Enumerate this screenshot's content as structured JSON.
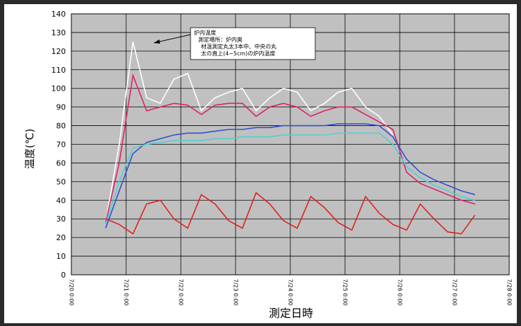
{
  "chart_data": {
    "type": "line",
    "y_label": "温度(℃)",
    "x_label": "測定日時",
    "annotation": [
      "炉内温度",
      "測定場所：炉内奥",
      "材温測定丸太3本中、中央の丸",
      "太の直上(4~5cm)の炉内温度"
    ],
    "x": [
      "7/20 15:00",
      "7/20 21:00",
      "7/21 3:00",
      "7/21 9:00",
      "7/21 15:00",
      "7/21 21:00",
      "7/22 3:00",
      "7/22 9:00",
      "7/22 15:00",
      "7/22 21:00",
      "7/23 3:00",
      "7/23 9:00",
      "7/23 15:00",
      "7/23 21:00",
      "7/24 3:00",
      "7/24 9:00",
      "7/24 15:00",
      "7/24 21:00",
      "7/25 3:00",
      "7/25 9:00",
      "7/25 15:00",
      "7/25 21:00",
      "7/26 3:00",
      "7/26 9:00",
      "7/26 15:00",
      "7/26 21:00",
      "7/27 3:00",
      "7/27 9:00"
    ],
    "series": [
      {
        "color": "#ffffff",
        "values": [
          28,
          70,
          125,
          95,
          92,
          105,
          108,
          88,
          95,
          98,
          100,
          88,
          95,
          100,
          98,
          88,
          92,
          98,
          100,
          90,
          85,
          75,
          null,
          null,
          null,
          null,
          null,
          null
        ]
      },
      {
        "color": "#e0206a",
        "values": [
          28,
          60,
          107,
          88,
          90,
          92,
          91,
          86,
          91,
          92,
          92,
          85,
          90,
          92,
          90,
          85,
          88,
          90,
          90,
          86,
          82,
          78,
          55,
          49,
          46,
          43,
          40,
          38
        ]
      },
      {
        "color": "#3050d0",
        "values": [
          25,
          45,
          65,
          71,
          73,
          75,
          76,
          76,
          77,
          78,
          78,
          79,
          79,
          80,
          80,
          80,
          80,
          81,
          81,
          81,
          80,
          74,
          62,
          55,
          51,
          48,
          45,
          43
        ]
      },
      {
        "color": "#50d0d0",
        "values": [
          27,
          50,
          68,
          70,
          71,
          72,
          72,
          72,
          73,
          73,
          74,
          74,
          74,
          75,
          75,
          75,
          75,
          76,
          76,
          76,
          76,
          70,
          58,
          52,
          48,
          45,
          42,
          40
        ]
      },
      {
        "color": "#e02020",
        "values": [
          30,
          27,
          22,
          38,
          40,
          30,
          25,
          43,
          38,
          29,
          25,
          44,
          38,
          29,
          25,
          42,
          36,
          28,
          24,
          42,
          33,
          27,
          24,
          38,
          30,
          23,
          22,
          32
        ]
      }
    ],
    "xlim": [
      "7/20 0:00",
      "7/28 0:00"
    ],
    "xticks": [
      "7/20 0:00",
      "7/21 0:00",
      "7/22 0:00",
      "7/23 0:00",
      "7/24 0:00",
      "7/25 0:00",
      "7/26 0:00",
      "7/27 0:00",
      "7/28 0:00"
    ],
    "ylim": [
      0,
      140
    ],
    "yticks": [
      0,
      10,
      20,
      30,
      40,
      50,
      60,
      70,
      80,
      90,
      100,
      110,
      120,
      130,
      140
    ],
    "grid": true,
    "plot_color": "#c0c0c0"
  }
}
